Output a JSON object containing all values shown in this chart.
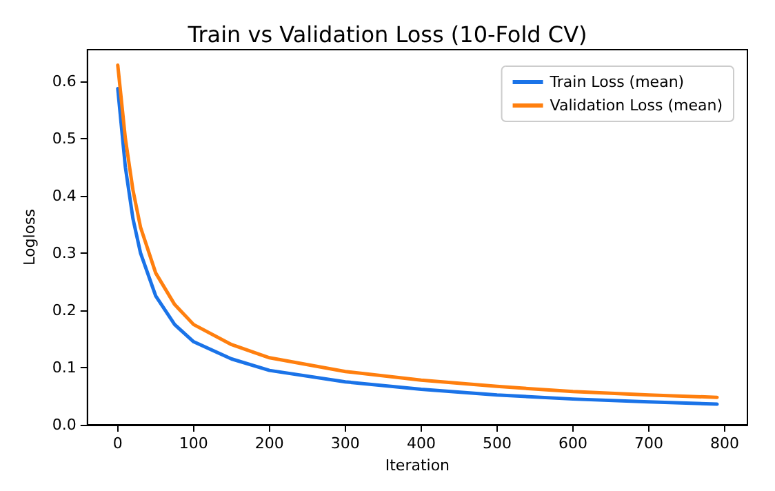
{
  "chart_data": {
    "type": "line",
    "title": "Train vs Validation Loss (10-Fold CV)",
    "xlabel": "Iteration",
    "ylabel": "Logloss",
    "xlim": [
      -40,
      830
    ],
    "xticks": [
      0,
      100,
      200,
      300,
      400,
      500,
      600,
      700,
      800
    ],
    "ylim": [
      0,
      0.655
    ],
    "yticks": [
      {
        "value": 0,
        "label": "0.0"
      },
      {
        "value": 0.1,
        "label": "0.1"
      },
      {
        "value": 0.2,
        "label": "0.2"
      },
      {
        "value": 0.3,
        "label": "0.3"
      },
      {
        "value": 0.4,
        "label": "0.4"
      },
      {
        "value": 0.5,
        "label": "0.5"
      },
      {
        "value": 0.6,
        "label": "0.6"
      }
    ],
    "grid": false,
    "legend": "top right",
    "line_style": "solid",
    "marker": "none",
    "series": [
      {
        "name": "Train Loss (mean)",
        "color": "#1a73e8",
        "x": [
          0,
          10,
          20,
          30,
          50,
          75,
          100,
          150,
          200,
          300,
          400,
          500,
          600,
          700,
          790
        ],
        "values": [
          0.587,
          0.45,
          0.36,
          0.3,
          0.225,
          0.175,
          0.145,
          0.115,
          0.095,
          0.075,
          0.062,
          0.052,
          0.045,
          0.04,
          0.036
        ]
      },
      {
        "name": "Validation Loss (mean)",
        "color": "#ff7f0e",
        "x": [
          0,
          10,
          20,
          30,
          50,
          75,
          100,
          150,
          200,
          300,
          400,
          500,
          600,
          700,
          790
        ],
        "values": [
          0.628,
          0.5,
          0.41,
          0.345,
          0.265,
          0.21,
          0.175,
          0.14,
          0.117,
          0.093,
          0.078,
          0.067,
          0.058,
          0.052,
          0.048
        ]
      }
    ]
  }
}
